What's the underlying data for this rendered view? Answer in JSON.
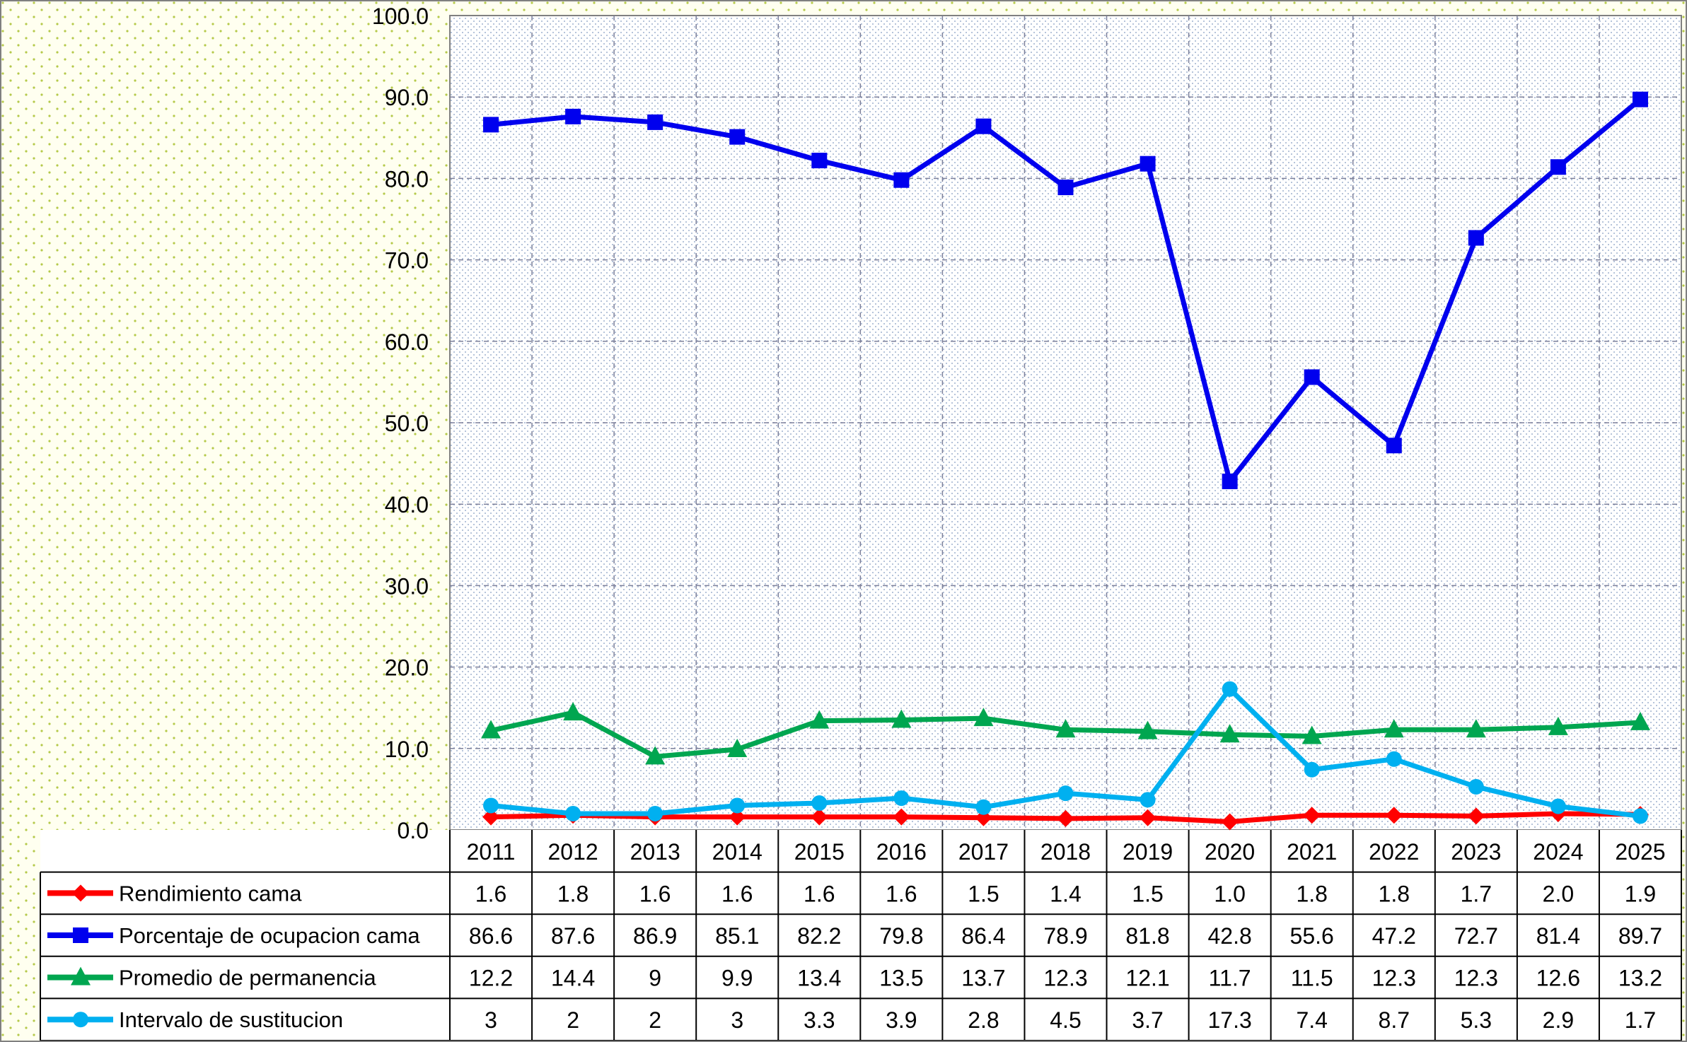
{
  "chart_data": {
    "type": "line",
    "title": "",
    "xlabel": "",
    "ylabel": "",
    "ylim": [
      0,
      100
    ],
    "y_ticks": [
      "0.0",
      "10.0",
      "20.0",
      "30.0",
      "40.0",
      "50.0",
      "60.0",
      "70.0",
      "80.0",
      "90.0",
      "100.0"
    ],
    "grid": true,
    "legend_placement": "data-table-bottom",
    "categories": [
      "2011",
      "2012",
      "2013",
      "2014",
      "2015",
      "2016",
      "2017",
      "2018",
      "2019",
      "2020",
      "2021",
      "2022",
      "2023",
      "2024",
      "2025"
    ],
    "series": [
      {
        "name": "Rendimiento cama",
        "color": "#ff0000",
        "marker": "diamond",
        "values": [
          1.6,
          1.8,
          1.6,
          1.6,
          1.6,
          1.6,
          1.5,
          1.4,
          1.5,
          1.0,
          1.8,
          1.8,
          1.7,
          2.0,
          1.9
        ],
        "labels": [
          "1.6",
          "1.8",
          "1.6",
          "1.6",
          "1.6",
          "1.6",
          "1.5",
          "1.4",
          "1.5",
          "1.0",
          "1.8",
          "1.8",
          "1.7",
          "2.0",
          "1.9"
        ]
      },
      {
        "name": "Porcentaje de ocupacion cama",
        "color": "#0000ee",
        "marker": "square",
        "values": [
          86.6,
          87.6,
          86.9,
          85.1,
          82.2,
          79.8,
          86.4,
          78.9,
          81.8,
          42.8,
          55.6,
          47.2,
          72.7,
          81.4,
          89.7
        ],
        "labels": [
          "86.6",
          "87.6",
          "86.9",
          "85.1",
          "82.2",
          "79.8",
          "86.4",
          "78.9",
          "81.8",
          "42.8",
          "55.6",
          "47.2",
          "72.7",
          "81.4",
          "89.7"
        ]
      },
      {
        "name": "Promedio de permanencia",
        "color": "#00a650",
        "marker": "triangle",
        "values": [
          12.2,
          14.4,
          9,
          9.9,
          13.4,
          13.5,
          13.7,
          12.3,
          12.1,
          11.7,
          11.5,
          12.3,
          12.3,
          12.6,
          13.2
        ],
        "labels": [
          "12.2",
          "14.4",
          "9",
          "9.9",
          "13.4",
          "13.5",
          "13.7",
          "12.3",
          "12.1",
          "11.7",
          "11.5",
          "12.3",
          "12.3",
          "12.6",
          "13.2"
        ]
      },
      {
        "name": "Intervalo de sustitucion",
        "color": "#00b0f0",
        "marker": "circle",
        "values": [
          3,
          2,
          2,
          3,
          3.3,
          3.9,
          2.8,
          4.5,
          3.7,
          17.3,
          7.4,
          8.7,
          5.3,
          2.9,
          1.7
        ],
        "labels": [
          "3",
          "2",
          "2",
          "3",
          "3.3",
          "3.9",
          "2.8",
          "4.5",
          "3.7",
          "17.3",
          "7.4",
          "8.7",
          "5.3",
          "2.9",
          "1.7"
        ]
      }
    ]
  }
}
